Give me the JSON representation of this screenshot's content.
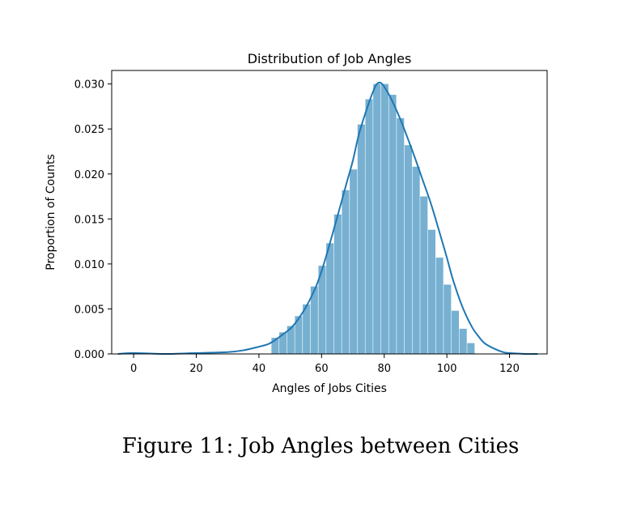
{
  "chart_data": {
    "type": "bar",
    "title": "Distribution of Job Angles",
    "xlabel": "Angles of Jobs Cities",
    "ylabel": "Proportion of Counts",
    "xlim": [
      -7,
      132
    ],
    "ylim": [
      0,
      0.0315
    ],
    "xticks": [
      0,
      20,
      40,
      60,
      80,
      100,
      120
    ],
    "yticks": [
      "0.000",
      "0.005",
      "0.010",
      "0.015",
      "0.020",
      "0.025",
      "0.030"
    ],
    "bar_color": "#77b0d1",
    "kde_color": "#1f77b4",
    "histogram": {
      "bin_edges": [
        44,
        46.5,
        49,
        51.5,
        54,
        56.5,
        59,
        61.5,
        64,
        66.5,
        69,
        71.5,
        74,
        76.5,
        79,
        81.5,
        84,
        86.5,
        89,
        91.5,
        94,
        96.5,
        99,
        101.5,
        104,
        106.5,
        109
      ],
      "values": [
        0.0018,
        0.0024,
        0.0031,
        0.0042,
        0.0055,
        0.0075,
        0.0098,
        0.0123,
        0.0155,
        0.0182,
        0.0205,
        0.0255,
        0.0283,
        0.03,
        0.03,
        0.0288,
        0.0262,
        0.0232,
        0.0208,
        0.0175,
        0.0138,
        0.0107,
        0.0077,
        0.0048,
        0.0028,
        0.0012
      ]
    },
    "kde": {
      "x": [
        -5,
        0,
        10,
        20,
        30,
        35,
        40,
        43,
        45,
        47,
        50,
        52,
        55,
        58,
        60,
        62,
        65,
        68,
        70,
        72,
        75,
        77,
        78,
        79,
        80,
        82,
        85,
        88,
        90,
        92,
        95,
        98,
        100,
        102,
        105,
        108,
        110,
        112,
        115,
        118,
        120,
        125,
        129
      ],
      "y": [
        0.0,
        0.0001,
        0.0,
        0.0001,
        0.0002,
        0.0004,
        0.0008,
        0.0011,
        0.0015,
        0.002,
        0.0028,
        0.0036,
        0.0052,
        0.0073,
        0.0092,
        0.0115,
        0.0152,
        0.019,
        0.0215,
        0.0245,
        0.0278,
        0.0296,
        0.0301,
        0.0301,
        0.0297,
        0.0285,
        0.0262,
        0.0235,
        0.0216,
        0.0196,
        0.0166,
        0.0131,
        0.0107,
        0.0082,
        0.0052,
        0.003,
        0.002,
        0.0012,
        0.0006,
        0.0002,
        0.0001,
        0.0,
        0.0
      ]
    }
  },
  "caption": "Figure 11: Job Angles between Cities"
}
